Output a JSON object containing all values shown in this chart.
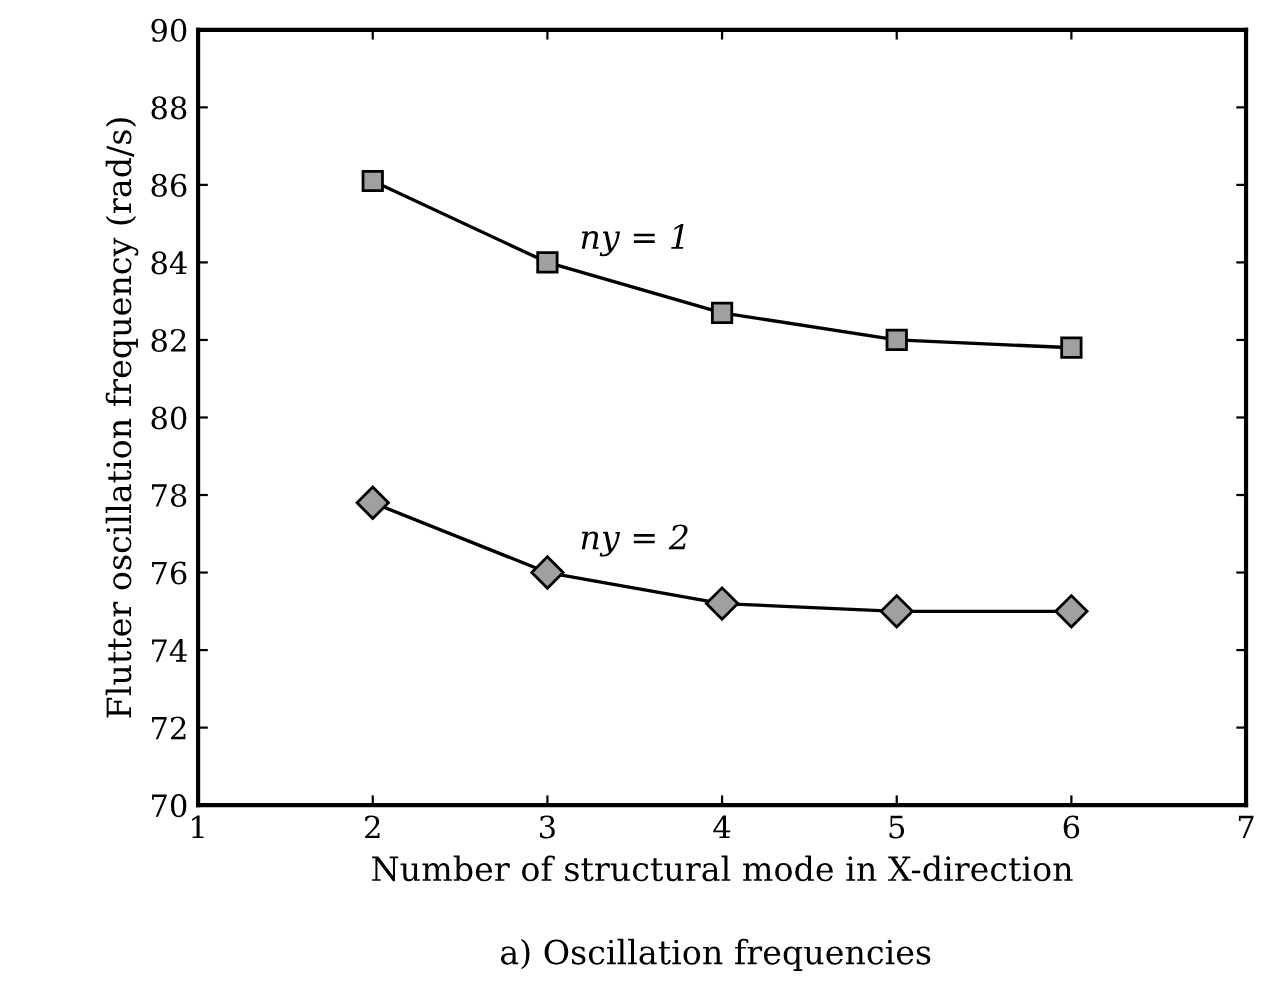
{
  "chart_data": {
    "type": "line",
    "xlabel": "Number of structural mode in X-direction",
    "ylabel": "Flutter oscillation frequency (rad/s)",
    "x": [
      2,
      3,
      4,
      5,
      6
    ],
    "series": [
      {
        "name": "ny = 1",
        "color": "#000000",
        "marker": "square",
        "values": [
          86.1,
          84.0,
          82.7,
          82.0,
          81.8
        ]
      },
      {
        "name": "ny = 2",
        "color": "#000000",
        "marker": "diamond",
        "values": [
          77.8,
          76.0,
          75.2,
          75.0,
          75.0
        ]
      }
    ],
    "xlim": [
      1,
      7
    ],
    "xticks": [
      1,
      2,
      3,
      4,
      5,
      6,
      7
    ],
    "ylim": [
      70,
      90
    ],
    "yticks": [
      70,
      72,
      74,
      76,
      78,
      80,
      82,
      84,
      86,
      88,
      90
    ],
    "grid": false,
    "line_style": "solid",
    "annotations": [
      "a) Oscillation frequencies"
    ]
  }
}
